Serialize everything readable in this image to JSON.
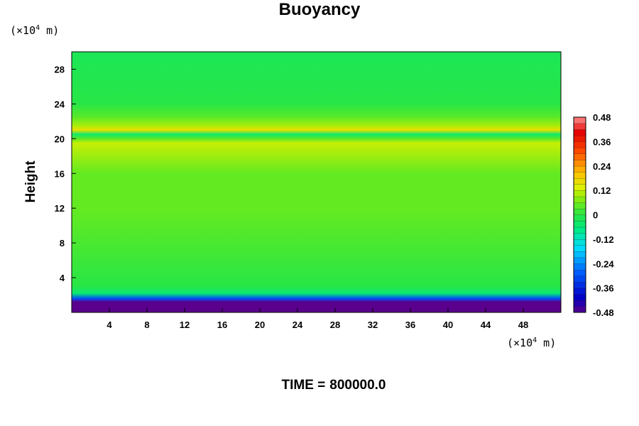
{
  "chart_data": {
    "type": "heatmap",
    "title": "Buoyancy",
    "ylabel": "Height",
    "y_unit": {
      "prefix": "(×10",
      "exp": "4",
      "suffix": " m)"
    },
    "x_unit": {
      "prefix": "(×10",
      "exp": "4",
      "suffix": " m)"
    },
    "xlim": [
      0,
      52
    ],
    "ylim": [
      0,
      30
    ],
    "x_ticks": [
      "4",
      "8",
      "12",
      "16",
      "20",
      "24",
      "28",
      "32",
      "36",
      "40",
      "44",
      "48"
    ],
    "y_ticks": [
      "4",
      "8",
      "12",
      "16",
      "20",
      "24",
      "28"
    ],
    "colorbar": {
      "range": [
        -0.48,
        0.48
      ],
      "labels": [
        "0.48",
        "0.36",
        "0.24",
        "0.12",
        "0",
        "-0.12",
        "-0.24",
        "-0.36",
        "-0.48"
      ]
    },
    "grid": false,
    "field_profile_by_height": [
      {
        "height": 1.2,
        "value": -0.48
      },
      {
        "height": 1.6,
        "value": -0.3
      },
      {
        "height": 2.2,
        "value": -0.05
      },
      {
        "height": 3.0,
        "value": 0.0
      },
      {
        "height": 10.0,
        "value": 0.04
      },
      {
        "height": 12.0,
        "value": 0.05
      },
      {
        "height": 16.0,
        "value": 0.05
      },
      {
        "height": 19.5,
        "value": 0.12
      },
      {
        "height": 20.0,
        "value": 0.04
      },
      {
        "height": 20.5,
        "value": -0.04
      },
      {
        "height": 21.0,
        "value": 0.16
      },
      {
        "height": 21.5,
        "value": 0.1
      },
      {
        "height": 22.5,
        "value": 0.04
      },
      {
        "height": 24.0,
        "value": 0.0
      },
      {
        "height": 30.0,
        "value": -0.02
      }
    ]
  },
  "footer": {
    "time_label": "TIME =",
    "time_value": "800000.0"
  }
}
